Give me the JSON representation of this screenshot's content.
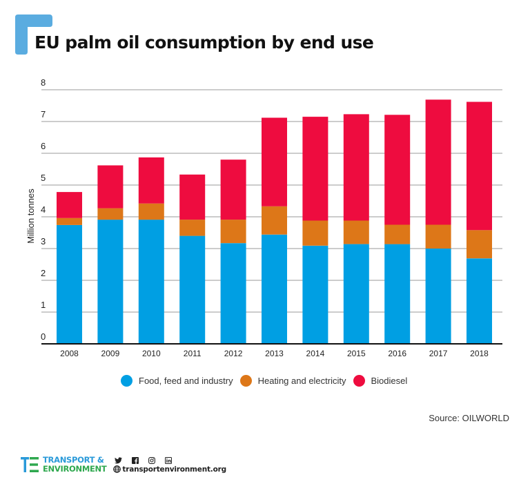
{
  "header": {
    "title": "EU palm oil consumption by end use",
    "accent_color": "#5aace0"
  },
  "chart_data": {
    "type": "bar",
    "stacked": true,
    "title": "EU palm oil consumption by end use",
    "xlabel": "",
    "ylabel": "Million tonnes",
    "ylim": [
      0,
      8
    ],
    "yticks": [
      0,
      1,
      2,
      3,
      4,
      5,
      6,
      7,
      8
    ],
    "grid": true,
    "categories": [
      "2008",
      "2009",
      "2010",
      "2011",
      "2012",
      "2013",
      "2014",
      "2015",
      "2016",
      "2017",
      "2018"
    ],
    "series": [
      {
        "name": "Food, feed and industry",
        "color": "#009fe3",
        "values": [
          3.74,
          3.91,
          3.91,
          3.4,
          3.17,
          3.44,
          3.09,
          3.14,
          3.14,
          3.0,
          2.69
        ]
      },
      {
        "name": "Heating and electricity",
        "color": "#dd7718",
        "values": [
          0.22,
          0.36,
          0.51,
          0.51,
          0.74,
          0.89,
          0.79,
          0.74,
          0.61,
          0.75,
          0.89
        ]
      },
      {
        "name": "Biodiesel",
        "color": "#ee0c3f",
        "values": [
          0.82,
          1.35,
          1.45,
          1.42,
          1.89,
          2.79,
          3.27,
          3.35,
          3.46,
          3.94,
          4.04
        ]
      }
    ],
    "legend_position": "bottom",
    "source": "Source: OILWORLD"
  },
  "legend": {
    "items": [
      {
        "label": "Food, feed and industry",
        "color": "#009fe3"
      },
      {
        "label": "Heating and electricity",
        "color": "#dd7718"
      },
      {
        "label": "Biodiesel",
        "color": "#ee0c3f"
      }
    ]
  },
  "source": "Source: OILWORLD",
  "footer": {
    "brand_line1": "TRANSPORT &",
    "brand_line2": "ENVIRONMENT",
    "brand_color1": "#2a9ad9",
    "brand_color2": "#2fa84f",
    "social_icons": [
      "twitter-icon",
      "facebook-icon",
      "instagram-icon",
      "linkedin-icon"
    ],
    "twitter_glyph": "🐦",
    "facebook_glyph": "f",
    "instagram_glyph": "◎",
    "linkedin_glyph": "in",
    "website": "transportenvironment.org"
  }
}
